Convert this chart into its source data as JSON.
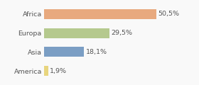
{
  "categories": [
    "Africa",
    "Europa",
    "Asia",
    "America"
  ],
  "values": [
    50.5,
    29.5,
    18.1,
    1.9
  ],
  "labels": [
    "50,5%",
    "29,5%",
    "18,1%",
    "1,9%"
  ],
  "bar_colors": [
    "#e8a97e",
    "#b5c98e",
    "#7b9ec4",
    "#e8d57e"
  ],
  "background_color": "#f9f9f9",
  "xlim": [
    0,
    68
  ],
  "label_fontsize": 6.8,
  "tick_fontsize": 6.8,
  "bar_height": 0.52
}
